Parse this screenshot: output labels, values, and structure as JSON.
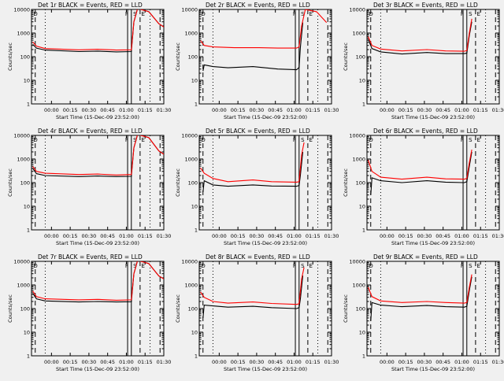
{
  "figure": {
    "xlabel": "Start Time (15-Dec-09 23:52:00)",
    "ylabel": "Counts/sec",
    "y_ticks": [
      "1",
      "10",
      "100",
      "1000",
      "10000"
    ],
    "x_ticks": [
      "00:00",
      "00:15",
      "00:30",
      "00:45",
      "01:00",
      "01:15",
      "01:30"
    ],
    "colors": {
      "events": "#000000",
      "lld": "#ff0000"
    }
  },
  "chart_data": [
    {
      "type": "line",
      "title": "Det 1r BLACK = Events, RED = LLD",
      "ylim": [
        1,
        10000
      ],
      "xlim_minutes_from_start": [
        -8,
        98
      ],
      "xscale": "linear",
      "yscale": "log",
      "series": [
        {
          "name": "Events",
          "points": [
            [
              -7,
              330
            ],
            [
              -4,
              230
            ],
            [
              3,
              190
            ],
            [
              30,
              165
            ],
            [
              45,
              172
            ],
            [
              60,
              160
            ],
            [
              72,
              165
            ],
            [
              74,
              3000
            ],
            [
              77,
              11000
            ],
            [
              86,
              8000
            ],
            [
              94,
              2500
            ],
            [
              98,
              1800
            ]
          ]
        },
        {
          "name": "LLD",
          "points": [
            [
              -7,
              420
            ],
            [
              -4,
              280
            ],
            [
              3,
              220
            ],
            [
              30,
              195
            ],
            [
              45,
              205
            ],
            [
              60,
              190
            ],
            [
              72,
              195
            ],
            [
              74,
              3000
            ],
            [
              77,
              11000
            ],
            [
              86,
              8000
            ],
            [
              94,
              2500
            ],
            [
              98,
              1800
            ]
          ]
        }
      ],
      "markers": [
        "D",
        "F",
        "S",
        "E"
      ]
    },
    {
      "type": "line",
      "title": "Det 2r BLACK = Events, RED = LLD",
      "ylim": [
        1,
        10000
      ],
      "xlim_minutes_from_start": [
        -8,
        98
      ],
      "xscale": "linear",
      "yscale": "log",
      "series": [
        {
          "name": "Events",
          "points": [
            [
              -5,
              25
            ],
            [
              -4,
              45
            ],
            [
              3,
              38
            ],
            [
              15,
              34
            ],
            [
              35,
              38
            ],
            [
              55,
              30
            ],
            [
              70,
              28
            ],
            [
              72,
              35
            ],
            [
              73,
              240
            ],
            [
              75,
              2800
            ]
          ]
        },
        {
          "name": "LLD",
          "points": [
            [
              -7,
              480
            ],
            [
              -4,
              300
            ],
            [
              3,
              260
            ],
            [
              20,
              240
            ],
            [
              40,
              240
            ],
            [
              55,
              230
            ],
            [
              70,
              230
            ],
            [
              72,
              260
            ],
            [
              74,
              2000
            ],
            [
              77,
              10000
            ],
            [
              86,
              8000
            ],
            [
              94,
              2800
            ]
          ]
        }
      ],
      "markers": [
        "D",
        "F",
        "S",
        "E"
      ]
    },
    {
      "type": "line",
      "title": "Det 3r BLACK = Events, RED = LLD",
      "ylim": [
        1,
        10000
      ],
      "xlim_minutes_from_start": [
        -8,
        98
      ],
      "xscale": "linear",
      "yscale": "log",
      "series": [
        {
          "name": "Events",
          "points": [
            [
              -7,
              550
            ],
            [
              -4,
              220
            ],
            [
              3,
              160
            ],
            [
              20,
              130
            ],
            [
              40,
              150
            ],
            [
              55,
              135
            ],
            [
              70,
              135
            ],
            [
              72,
              140
            ],
            [
              74,
              800
            ],
            [
              76,
              3000
            ]
          ]
        },
        {
          "name": "LLD",
          "points": [
            [
              -7,
              700
            ],
            [
              -4,
              300
            ],
            [
              3,
              210
            ],
            [
              20,
              175
            ],
            [
              40,
              200
            ],
            [
              55,
              175
            ],
            [
              70,
              170
            ],
            [
              72,
              180
            ],
            [
              74,
              1000
            ],
            [
              76,
              4000
            ]
          ]
        }
      ],
      "markers": [
        "D",
        "F",
        "S",
        "E"
      ]
    },
    {
      "type": "line",
      "title": "Det 4r BLACK = Events, RED = LLD",
      "ylim": [
        1,
        10000
      ],
      "xlim_minutes_from_start": [
        -8,
        98
      ],
      "xscale": "linear",
      "yscale": "log",
      "series": [
        {
          "name": "Events",
          "points": [
            [
              -7,
              400
            ],
            [
              -4,
              240
            ],
            [
              3,
              200
            ],
            [
              30,
              180
            ],
            [
              45,
              190
            ],
            [
              60,
              180
            ],
            [
              72,
              185
            ],
            [
              74,
              3000
            ],
            [
              77,
              11000
            ],
            [
              86,
              8000
            ],
            [
              94,
              2200
            ],
            [
              98,
              1600
            ]
          ]
        },
        {
          "name": "LLD",
          "points": [
            [
              -7,
              480
            ],
            [
              -4,
              300
            ],
            [
              3,
              250
            ],
            [
              30,
              220
            ],
            [
              45,
              230
            ],
            [
              60,
              210
            ],
            [
              72,
              220
            ],
            [
              74,
              3000
            ],
            [
              77,
              11000
            ],
            [
              86,
              8000
            ],
            [
              94,
              2200
            ],
            [
              98,
              1600
            ]
          ]
        }
      ],
      "markers": [
        "D",
        "F",
        "S",
        "E"
      ]
    },
    {
      "type": "line",
      "title": "Det 5r BLACK = Events, RED = LLD",
      "ylim": [
        1,
        10000
      ],
      "xlim_minutes_from_start": [
        -8,
        98
      ],
      "xscale": "linear",
      "yscale": "log",
      "series": [
        {
          "name": "Events",
          "points": [
            [
              -5,
              40
            ],
            [
              -4,
              120
            ],
            [
              3,
              80
            ],
            [
              15,
              70
            ],
            [
              35,
              80
            ],
            [
              50,
              72
            ],
            [
              70,
              70
            ],
            [
              72,
              75
            ],
            [
              73,
              200
            ],
            [
              75,
              2000
            ]
          ]
        },
        {
          "name": "LLD",
          "points": [
            [
              -7,
              420
            ],
            [
              -4,
              250
            ],
            [
              3,
              150
            ],
            [
              15,
              110
            ],
            [
              35,
              130
            ],
            [
              50,
              110
            ],
            [
              70,
              105
            ],
            [
              72,
              110
            ],
            [
              74,
              1500
            ],
            [
              76,
              5000
            ]
          ]
        }
      ],
      "markers": [
        "D",
        "F",
        "S",
        "E"
      ]
    },
    {
      "type": "line",
      "title": "Det 6r BLACK = Events, RED = LLD",
      "ylim": [
        1,
        10000
      ],
      "xlim_minutes_from_start": [
        -8,
        98
      ],
      "xscale": "linear",
      "yscale": "log",
      "series": [
        {
          "name": "Events",
          "points": [
            [
              -5,
              30
            ],
            [
              -4,
              160
            ],
            [
              3,
              120
            ],
            [
              20,
              100
            ],
            [
              40,
              120
            ],
            [
              55,
              105
            ],
            [
              70,
              100
            ],
            [
              72,
              110
            ],
            [
              74,
              500
            ],
            [
              76,
              2000
            ]
          ]
        },
        {
          "name": "LLD",
          "points": [
            [
              -7,
              900
            ],
            [
              -4,
              300
            ],
            [
              3,
              170
            ],
            [
              20,
              140
            ],
            [
              40,
              170
            ],
            [
              55,
              145
            ],
            [
              70,
              140
            ],
            [
              72,
              150
            ],
            [
              74,
              700
            ],
            [
              76,
              2500
            ]
          ]
        }
      ],
      "markers": [
        "D",
        "F",
        "S",
        "E"
      ]
    },
    {
      "type": "line",
      "title": "Det 7r BLACK = Events, RED = LLD",
      "ylim": [
        1,
        10000
      ],
      "xlim_minutes_from_start": [
        -8,
        98
      ],
      "xscale": "linear",
      "yscale": "log",
      "series": [
        {
          "name": "Events",
          "points": [
            [
              -7,
              450
            ],
            [
              -4,
              260
            ],
            [
              3,
              210
            ],
            [
              30,
              190
            ],
            [
              45,
              200
            ],
            [
              60,
              190
            ],
            [
              72,
              195
            ],
            [
              74,
              3000
            ],
            [
              77,
              11000
            ],
            [
              86,
              8000
            ],
            [
              94,
              2400
            ],
            [
              98,
              1800
            ]
          ]
        },
        {
          "name": "LLD",
          "points": [
            [
              -7,
              550
            ],
            [
              -4,
              320
            ],
            [
              3,
              260
            ],
            [
              30,
              235
            ],
            [
              45,
              245
            ],
            [
              60,
              225
            ],
            [
              72,
              235
            ],
            [
              74,
              3000
            ],
            [
              77,
              11000
            ],
            [
              86,
              8000
            ],
            [
              94,
              2400
            ],
            [
              98,
              1800
            ]
          ]
        }
      ],
      "markers": [
        "D",
        "F",
        "S",
        "E"
      ]
    },
    {
      "type": "line",
      "title": "Det 8r BLACK = Events, RED = LLD",
      "ylim": [
        1,
        10000
      ],
      "xlim_minutes_from_start": [
        -8,
        98
      ],
      "xscale": "linear",
      "yscale": "log",
      "series": [
        {
          "name": "Events",
          "points": [
            [
              -5,
              40
            ],
            [
              -4,
              140
            ],
            [
              3,
              130
            ],
            [
              15,
              115
            ],
            [
              35,
              125
            ],
            [
              50,
              110
            ],
            [
              70,
              100
            ],
            [
              72,
              110
            ],
            [
              73,
              250
            ],
            [
              75,
              2500
            ]
          ]
        },
        {
          "name": "LLD",
          "points": [
            [
              -7,
              500
            ],
            [
              -4,
              300
            ],
            [
              3,
              200
            ],
            [
              15,
              170
            ],
            [
              35,
              190
            ],
            [
              50,
              165
            ],
            [
              70,
              150
            ],
            [
              72,
              160
            ],
            [
              74,
              1800
            ],
            [
              76,
              5500
            ]
          ]
        }
      ],
      "markers": [
        "D",
        "F",
        "S",
        "E"
      ]
    },
    {
      "type": "line",
      "title": "Det 9r BLACK = Events, RED = LLD",
      "ylim": [
        1,
        10000
      ],
      "xlim_minutes_from_start": [
        -8,
        98
      ],
      "xscale": "linear",
      "yscale": "log",
      "series": [
        {
          "name": "Events",
          "points": [
            [
              -5,
              30
            ],
            [
              -4,
              180
            ],
            [
              3,
              140
            ],
            [
              20,
              120
            ],
            [
              40,
              135
            ],
            [
              55,
              120
            ],
            [
              70,
              115
            ],
            [
              72,
              125
            ],
            [
              74,
              600
            ],
            [
              76,
              2200
            ]
          ]
        },
        {
          "name": "LLD",
          "points": [
            [
              -7,
              800
            ],
            [
              -4,
              320
            ],
            [
              3,
              210
            ],
            [
              20,
              180
            ],
            [
              40,
              200
            ],
            [
              55,
              180
            ],
            [
              70,
              170
            ],
            [
              72,
              180
            ],
            [
              74,
              800
            ],
            [
              76,
              2800
            ]
          ]
        }
      ],
      "markers": [
        "D",
        "F",
        "S",
        "E"
      ]
    }
  ]
}
